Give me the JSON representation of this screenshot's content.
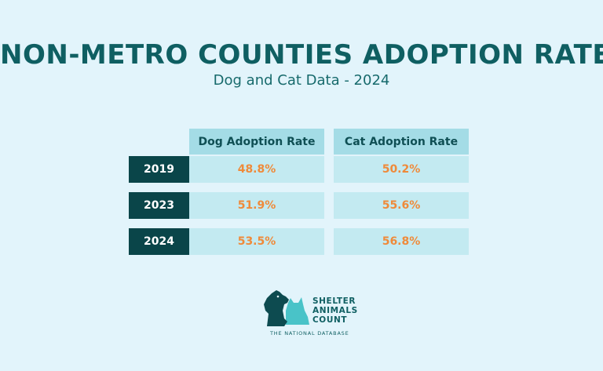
{
  "header": {
    "title": "NON-METRO COUNTIES ADOPTION RATES",
    "subtitle": "Dog and Cat Data - 2024"
  },
  "chart_data": {
    "type": "table",
    "columns": [
      "Dog Adoption Rate",
      "Cat Adoption Rate"
    ],
    "rows": [
      {
        "year": "2019",
        "dog": "48.8%",
        "cat": "50.2%"
      },
      {
        "year": "2023",
        "dog": "51.9%",
        "cat": "55.6%"
      },
      {
        "year": "2024",
        "dog": "53.5%",
        "cat": "56.8%"
      }
    ]
  },
  "logo": {
    "line1": "SHELTER",
    "line2": "ANIMALS",
    "line3": "COUNT",
    "tagline": "THE NATIONAL DATABASE",
    "icon": "dog-and-cat-silhouette-icon"
  },
  "colors": {
    "background": "#e2f4fb",
    "title": "#0f5f62",
    "header_cell": "#a4dce6",
    "year_cell": "#0a4549",
    "value_cell": "#c3eaf1",
    "value_text": "#ef8a3a",
    "logo_dog": "#0d4b50",
    "logo_cat": "#49c3c8"
  }
}
